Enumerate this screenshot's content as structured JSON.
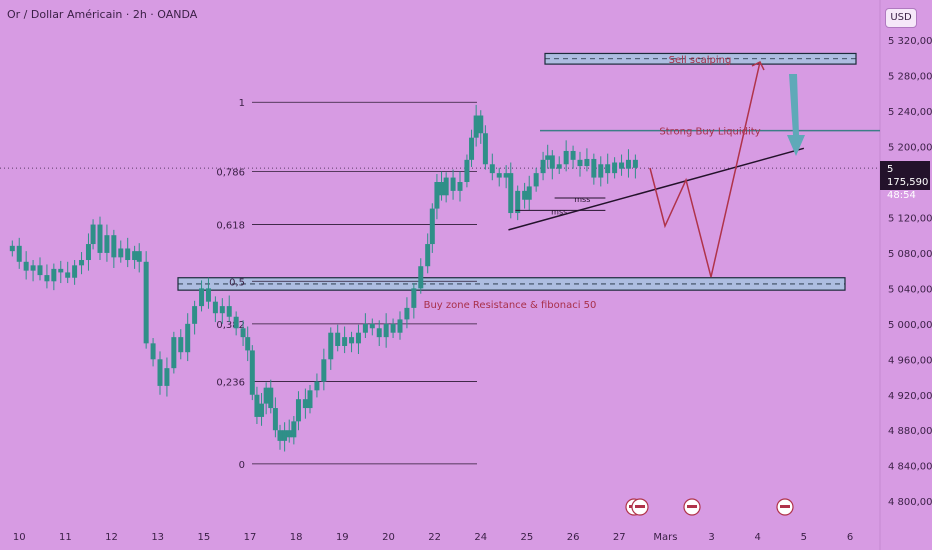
{
  "header": {
    "title": "Or / Dollar Américain · 2h · OANDA",
    "currency": "USD"
  },
  "colors": {
    "background": "#d79be3",
    "candle": "#2f8f88",
    "zone_fill": "#9fc8e0",
    "zone_border": "#1b2b3b",
    "projection": "#b0334a",
    "arrow": "#5fa9b8",
    "fib_line": "#2b1a33",
    "annotation_text": "#a8304a"
  },
  "price_tag": {
    "price": "5 175,590",
    "countdown": "48:54"
  },
  "chart_data": {
    "type": "candlestick",
    "symbol": "XAUUSD",
    "timeframe": "2h",
    "ylim": [
      4790,
      5345
    ],
    "y_ticks": [
      "5 320,000",
      "5 280,000",
      "5 240,000",
      "5 200,000",
      "5 120,000",
      "5 080,000",
      "5 040,000",
      "5 000,000",
      "4 960,000",
      "4 920,000",
      "4 880,000",
      "4 840,000",
      "4 800,000"
    ],
    "y_tick_values": [
      5320,
      5280,
      5240,
      5200,
      5120,
      5080,
      5040,
      5000,
      4960,
      4920,
      4880,
      4840,
      4800
    ],
    "x_ticks": [
      "10",
      "11",
      "12",
      "13",
      "15",
      "17",
      "18",
      "19",
      "20",
      "22",
      "24",
      "25",
      "26",
      "27",
      "Mars",
      "3",
      "4",
      "5",
      "6"
    ],
    "x_tick_positions": [
      10,
      11,
      12,
      13,
      14,
      15,
      16,
      17,
      18,
      19,
      20,
      21,
      22,
      23,
      24,
      25,
      26,
      27,
      28
    ],
    "xlim": [
      9.8,
      28.0
    ],
    "closes": [
      {
        "x": 9.85,
        "c": 5088
      },
      {
        "x": 10.0,
        "c": 5070
      },
      {
        "x": 10.15,
        "c": 5060
      },
      {
        "x": 10.3,
        "c": 5066
      },
      {
        "x": 10.45,
        "c": 5055
      },
      {
        "x": 10.6,
        "c": 5048
      },
      {
        "x": 10.75,
        "c": 5062
      },
      {
        "x": 10.9,
        "c": 5058
      },
      {
        "x": 11.05,
        "c": 5052
      },
      {
        "x": 11.2,
        "c": 5066
      },
      {
        "x": 11.35,
        "c": 5072
      },
      {
        "x": 11.5,
        "c": 5090
      },
      {
        "x": 11.6,
        "c": 5112
      },
      {
        "x": 11.75,
        "c": 5080
      },
      {
        "x": 11.9,
        "c": 5100
      },
      {
        "x": 12.05,
        "c": 5075
      },
      {
        "x": 12.2,
        "c": 5085
      },
      {
        "x": 12.35,
        "c": 5072
      },
      {
        "x": 12.5,
        "c": 5082
      },
      {
        "x": 12.6,
        "c": 5070
      },
      {
        "x": 12.75,
        "c": 4978
      },
      {
        "x": 12.9,
        "c": 4960
      },
      {
        "x": 13.05,
        "c": 4930
      },
      {
        "x": 13.2,
        "c": 4950
      },
      {
        "x": 13.35,
        "c": 4985
      },
      {
        "x": 13.5,
        "c": 4968
      },
      {
        "x": 13.65,
        "c": 5000
      },
      {
        "x": 13.8,
        "c": 5020
      },
      {
        "x": 13.95,
        "c": 5040
      },
      {
        "x": 14.1,
        "c": 5025
      },
      {
        "x": 14.25,
        "c": 5012
      },
      {
        "x": 14.4,
        "c": 5020
      },
      {
        "x": 14.55,
        "c": 5008
      },
      {
        "x": 14.7,
        "c": 4995
      },
      {
        "x": 14.85,
        "c": 4985
      },
      {
        "x": 14.95,
        "c": 4970
      },
      {
        "x": 15.05,
        "c": 4920
      },
      {
        "x": 15.15,
        "c": 4895
      },
      {
        "x": 15.25,
        "c": 4910
      },
      {
        "x": 15.35,
        "c": 4928
      },
      {
        "x": 15.45,
        "c": 4905
      },
      {
        "x": 15.55,
        "c": 4880
      },
      {
        "x": 15.65,
        "c": 4868
      },
      {
        "x": 15.75,
        "c": 4880
      },
      {
        "x": 15.85,
        "c": 4872
      },
      {
        "x": 15.95,
        "c": 4890
      },
      {
        "x": 16.05,
        "c": 4915
      },
      {
        "x": 16.2,
        "c": 4905
      },
      {
        "x": 16.3,
        "c": 4925
      },
      {
        "x": 16.45,
        "c": 4935
      },
      {
        "x": 16.6,
        "c": 4960
      },
      {
        "x": 16.75,
        "c": 4990
      },
      {
        "x": 16.9,
        "c": 4975
      },
      {
        "x": 17.05,
        "c": 4985
      },
      {
        "x": 17.2,
        "c": 4978
      },
      {
        "x": 17.35,
        "c": 4990
      },
      {
        "x": 17.5,
        "c": 5000
      },
      {
        "x": 17.65,
        "c": 4995
      },
      {
        "x": 17.8,
        "c": 4985
      },
      {
        "x": 17.95,
        "c": 5000
      },
      {
        "x": 18.1,
        "c": 4990
      },
      {
        "x": 18.25,
        "c": 5005
      },
      {
        "x": 18.4,
        "c": 5018
      },
      {
        "x": 18.55,
        "c": 5040
      },
      {
        "x": 18.7,
        "c": 5065
      },
      {
        "x": 18.85,
        "c": 5090
      },
      {
        "x": 18.95,
        "c": 5130
      },
      {
        "x": 19.05,
        "c": 5160
      },
      {
        "x": 19.15,
        "c": 5145
      },
      {
        "x": 19.25,
        "c": 5165
      },
      {
        "x": 19.4,
        "c": 5150
      },
      {
        "x": 19.55,
        "c": 5160
      },
      {
        "x": 19.7,
        "c": 5185
      },
      {
        "x": 19.8,
        "c": 5210
      },
      {
        "x": 19.9,
        "c": 5235
      },
      {
        "x": 20.0,
        "c": 5215
      },
      {
        "x": 20.1,
        "c": 5180
      },
      {
        "x": 20.25,
        "c": 5170
      },
      {
        "x": 20.4,
        "c": 5165
      },
      {
        "x": 20.55,
        "c": 5170
      },
      {
        "x": 20.65,
        "c": 5125
      },
      {
        "x": 20.8,
        "c": 5150
      },
      {
        "x": 20.95,
        "c": 5140
      },
      {
        "x": 21.05,
        "c": 5155
      },
      {
        "x": 21.2,
        "c": 5170
      },
      {
        "x": 21.35,
        "c": 5185
      },
      {
        "x": 21.45,
        "c": 5190
      },
      {
        "x": 21.55,
        "c": 5175
      },
      {
        "x": 21.7,
        "c": 5180
      },
      {
        "x": 21.85,
        "c": 5195
      },
      {
        "x": 22.0,
        "c": 5185
      },
      {
        "x": 22.15,
        "c": 5178
      },
      {
        "x": 22.3,
        "c": 5186
      },
      {
        "x": 22.45,
        "c": 5165
      },
      {
        "x": 22.6,
        "c": 5180
      },
      {
        "x": 22.75,
        "c": 5170
      },
      {
        "x": 22.9,
        "c": 5182
      },
      {
        "x": 23.05,
        "c": 5175
      },
      {
        "x": 23.2,
        "c": 5185
      },
      {
        "x": 23.35,
        "c": 5176
      }
    ],
    "fibonacci": {
      "levels": [
        "1",
        "0,786",
        "0,618",
        "0,5",
        "0,382",
        "0,236",
        "0"
      ],
      "values": [
        5250,
        5172,
        5112,
        5048,
        5000,
        4935,
        4842
      ]
    },
    "zones": [
      {
        "label": "Sell scalping",
        "from": 5293,
        "to": 5305
      },
      {
        "label": "Buy zone Resistance & fibonaci 50",
        "from": 5038,
        "to": 5052
      }
    ],
    "levels": [
      {
        "label": "Strong Buy Liquidity",
        "value": 5218
      }
    ],
    "annotations": [
      "mss",
      "mss"
    ],
    "current_price": 5175.59
  }
}
